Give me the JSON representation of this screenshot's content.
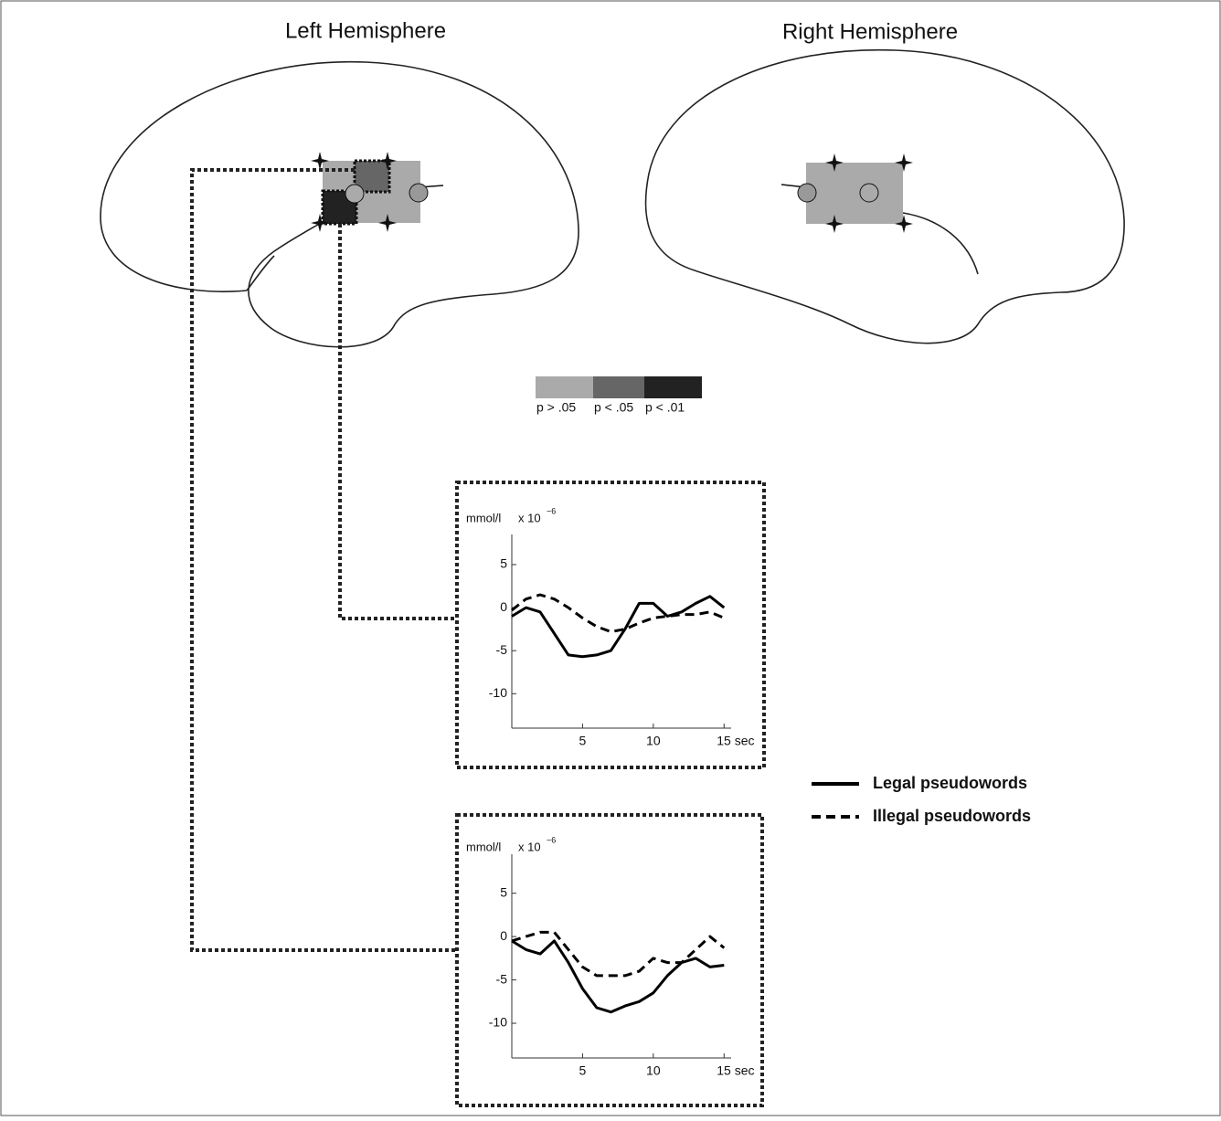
{
  "figure": {
    "left_title": "Left Hemisphere",
    "right_title": "Right Hemisphere",
    "significance_legend": [
      {
        "label": "p > .05",
        "color": "#aaaaaa"
      },
      {
        "label": "p < .05",
        "color": "#666666"
      },
      {
        "label": "p < .01",
        "color": "#222222"
      }
    ]
  },
  "chart_data": [
    {
      "type": "line",
      "y_unit": "mmol/l",
      "y_multiplier": "x 10",
      "y_exponent": "−6",
      "x": [
        0,
        1,
        2,
        3,
        4,
        5,
        6,
        7,
        8,
        9,
        10,
        11,
        12,
        13,
        14,
        15
      ],
      "xlim": [
        0,
        15.5
      ],
      "xticks": [
        5,
        10,
        {
          "value": 15,
          "label": "15 sec"
        }
      ],
      "ylim": [
        -14,
        8.5
      ],
      "yticks": [
        -10,
        -5,
        0,
        5
      ],
      "series": [
        {
          "name": "Legal pseudowords",
          "color": "#000000",
          "line_style": "solid",
          "values": [
            -1,
            0,
            -0.5,
            -3,
            -5.5,
            -5.7,
            -5.5,
            -5,
            -2.5,
            0.5,
            0.5,
            -1,
            -0.5,
            0.5,
            1.3,
            0
          ]
        },
        {
          "name": "Illegal pseudowords",
          "color": "#000000",
          "line_style": "dashed",
          "values": [
            -0.3,
            1,
            1.5,
            1,
            0,
            -1.2,
            -2.2,
            -2.8,
            -2.5,
            -1.8,
            -1.2,
            -1,
            -0.8,
            -0.8,
            -0.5,
            -1.2
          ]
        }
      ]
    },
    {
      "type": "line",
      "y_unit": "mmol/l",
      "y_multiplier": "x 10",
      "y_exponent": "−6",
      "x": [
        0,
        1,
        2,
        3,
        4,
        5,
        6,
        7,
        8,
        9,
        10,
        11,
        12,
        13,
        14,
        15
      ],
      "xlim": [
        0,
        15.5
      ],
      "xticks": [
        5,
        10,
        {
          "value": 15,
          "label": "15 sec"
        }
      ],
      "ylim": [
        -14,
        9.5
      ],
      "yticks": [
        -10,
        -5,
        0,
        5
      ],
      "series": [
        {
          "name": "Legal pseudowords",
          "color": "#000000",
          "line_style": "solid",
          "values": [
            -0.5,
            -1.5,
            -2,
            -0.5,
            -3,
            -6,
            -8.2,
            -8.7,
            -8,
            -7.5,
            -6.5,
            -4.5,
            -3,
            -2.5,
            -3.5,
            -3.3
          ]
        },
        {
          "name": "Illegal pseudowords",
          "color": "#000000",
          "line_style": "dashed",
          "values": [
            -0.5,
            0,
            0.5,
            0.5,
            -1.5,
            -3.5,
            -4.5,
            -4.5,
            -4.5,
            -4,
            -2.5,
            -3,
            -3,
            -1.5,
            0,
            -1.3
          ]
        }
      ]
    }
  ]
}
